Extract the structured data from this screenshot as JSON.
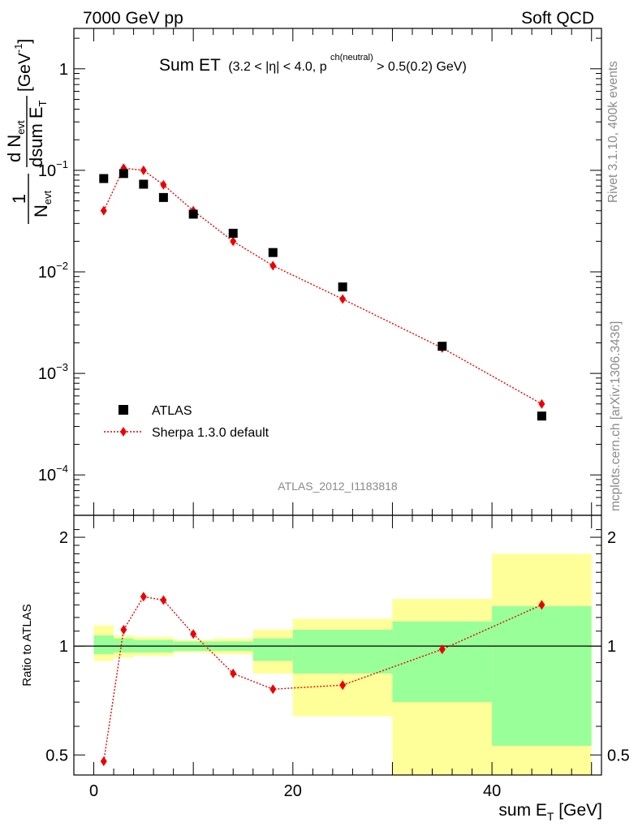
{
  "header": {
    "left": "7000 GeV pp",
    "right": "Soft QCD"
  },
  "side_labels": {
    "rivet": "Rivet 3.1.10,  400k events",
    "mcplots": "mcplots.cern.ch [arXiv:1306.3436]"
  },
  "watermark": "ATLAS_2012_I1183818",
  "plot_title": {
    "main": "Sum ET",
    "sub_a": "(3.2 < |η| < 4.0, p",
    "sub_sup": "ch(neutral)",
    "sub_b": " > 0.5(0.2) GeV)"
  },
  "colors": {
    "data": "#000000",
    "mc": "#ee0000",
    "band_inner": "#99ff99",
    "band_outer": "#ffff99"
  },
  "chart_data": [
    {
      "type": "scatter",
      "log_y": true,
      "xlim": [
        -2,
        51
      ],
      "ylim": [
        4e-05,
        2.5
      ],
      "yticks": [
        {
          "value": 1,
          "label": "1"
        },
        {
          "value": 0.1,
          "base": "10",
          "exp": "−1"
        },
        {
          "value": 0.01,
          "base": "10",
          "exp": "−2"
        },
        {
          "value": 0.001,
          "base": "10",
          "exp": "−3"
        },
        {
          "value": 0.0001,
          "base": "10",
          "exp": "−4"
        }
      ],
      "ylabel": {
        "frac_pre_num": "1",
        "frac_pre_den": "N",
        "frac_pre_den_sub": "evt",
        "num": "d N",
        "num_sub": "evt",
        "den": "dsum E",
        "den_sub": "T",
        "unit": "[GeV",
        "unit_sup": "-1",
        "unit_close": "]"
      },
      "series": [
        {
          "name": "ATLAS",
          "style": "square",
          "x": [
            1,
            3,
            5,
            7,
            10,
            14,
            18,
            25,
            35,
            45
          ],
          "y": [
            0.083,
            0.093,
            0.073,
            0.054,
            0.037,
            0.024,
            0.0155,
            0.0071,
            0.00185,
            0.00038
          ]
        },
        {
          "name": "Sherpa 1.3.0 default",
          "style": "diamond-dotted",
          "x": [
            1,
            3,
            5,
            7,
            10,
            14,
            18,
            25,
            35,
            45
          ],
          "y": [
            0.04,
            0.105,
            0.1,
            0.072,
            0.04,
            0.02,
            0.0115,
            0.0054,
            0.00178,
            0.0005
          ]
        }
      ]
    },
    {
      "type": "scatter",
      "log_y": true,
      "ylabel": "Ratio to ATLAS",
      "xlabel": "sum E",
      "xlabel_sub": "T",
      "xlabel_unit": " [GeV]",
      "xlim": [
        -2,
        51
      ],
      "ylim": [
        0.44,
        2.3
      ],
      "yticks": [
        {
          "value": 0.5,
          "label": "0.5"
        },
        {
          "value": 1,
          "label": "1"
        },
        {
          "value": 2,
          "label": "2"
        }
      ],
      "xticks": [
        {
          "value": 0,
          "label": "0"
        },
        {
          "value": 20,
          "label": "20"
        },
        {
          "value": 40,
          "label": "40"
        }
      ],
      "bands": {
        "edges": [
          0,
          2,
          4,
          8,
          12,
          16,
          20,
          30,
          40,
          50
        ],
        "inner_low": [
          0.95,
          0.96,
          0.96,
          0.97,
          0.97,
          0.91,
          0.84,
          0.7,
          0.53
        ],
        "inner_high": [
          1.07,
          1.05,
          1.04,
          1.03,
          1.03,
          1.05,
          1.11,
          1.17,
          1.29
        ],
        "outer_low": [
          0.91,
          0.93,
          0.94,
          0.96,
          0.95,
          0.84,
          0.64,
          0.3,
          0.3
        ],
        "outer_high": [
          1.14,
          1.07,
          1.06,
          1.04,
          1.05,
          1.11,
          1.19,
          1.35,
          1.8
        ]
      },
      "series": [
        {
          "name": "Sherpa 1.3.0 default",
          "style": "diamond-dotted",
          "x": [
            1,
            3,
            5,
            7,
            10,
            14,
            18,
            25,
            35,
            45
          ],
          "y": [
            0.48,
            1.11,
            1.37,
            1.34,
            1.08,
            0.84,
            0.76,
            0.78,
            0.98,
            1.3
          ]
        }
      ]
    }
  ]
}
